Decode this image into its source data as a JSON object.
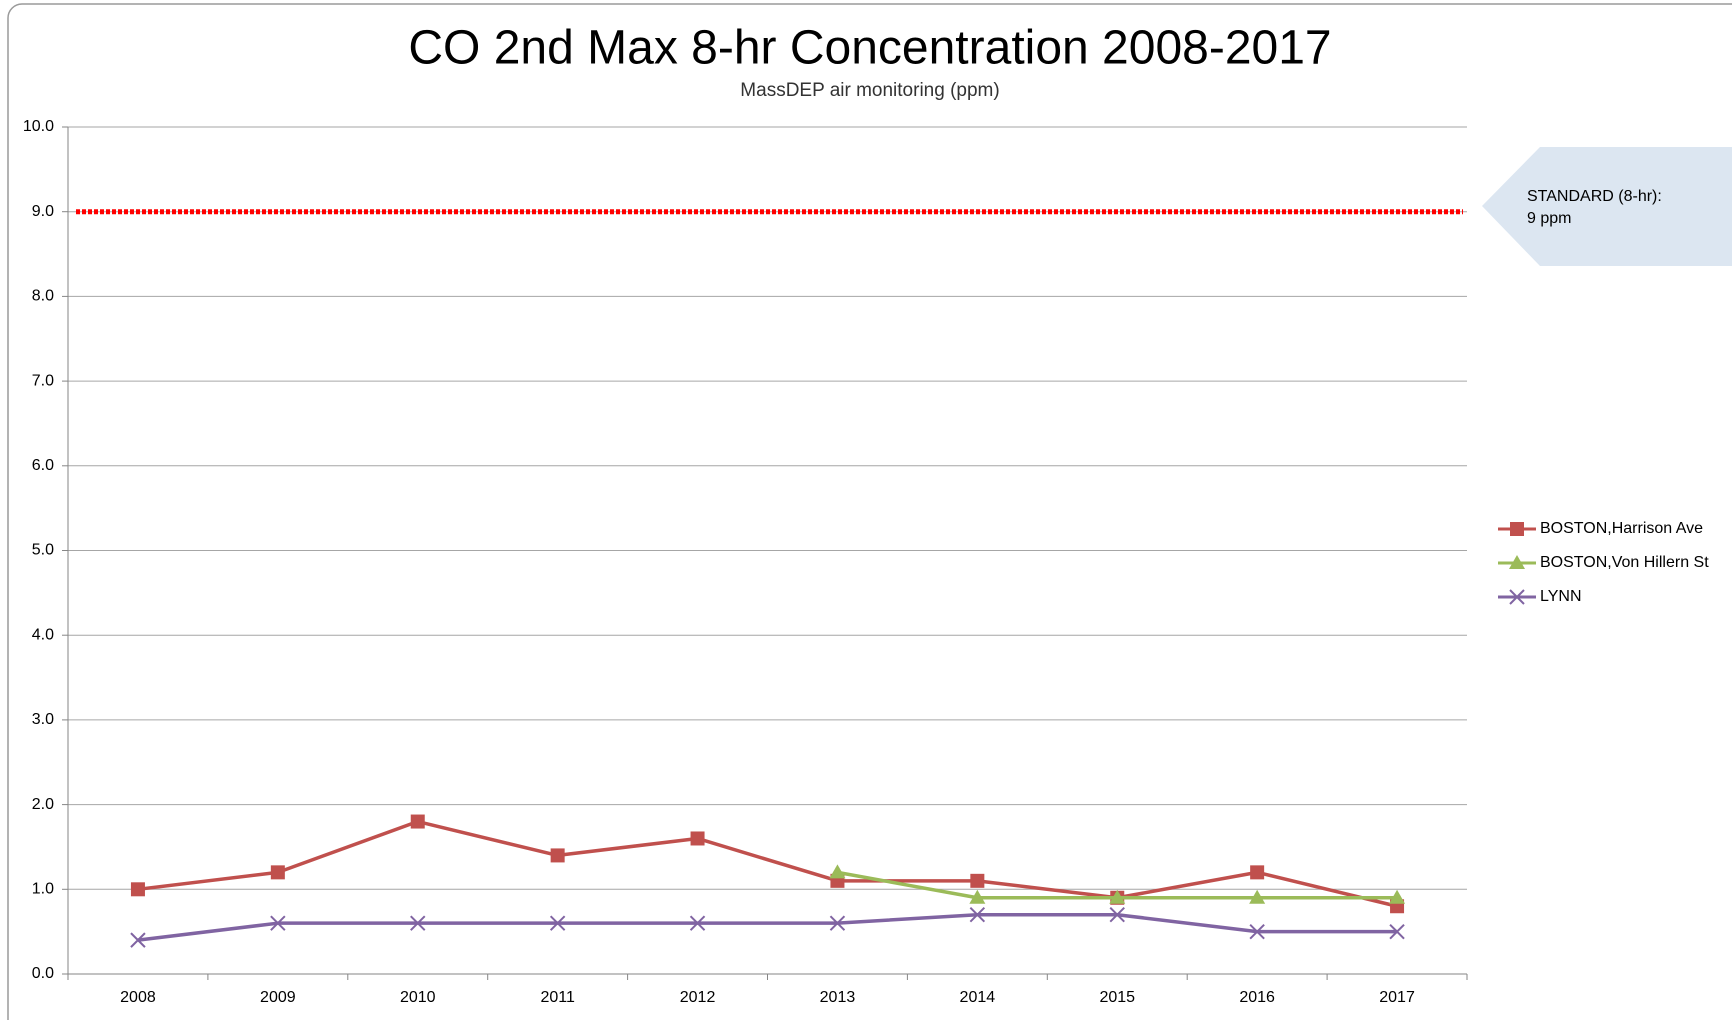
{
  "chart_data": {
    "type": "line",
    "title": "CO 2nd Max 8-hr Concentration 2008-2017",
    "subtitle": "MassDEP air monitoring (ppm)",
    "categories": [
      "2008",
      "2009",
      "2010",
      "2011",
      "2012",
      "2013",
      "2014",
      "2015",
      "2016",
      "2017"
    ],
    "series": [
      {
        "name": "BOSTON,Harrison Ave",
        "color": "#c0504d",
        "marker": "square",
        "values": [
          1.0,
          1.2,
          1.8,
          1.4,
          1.6,
          1.1,
          1.1,
          0.9,
          1.2,
          0.8
        ]
      },
      {
        "name": "BOSTON,Von Hillern St",
        "color": "#9bbb59",
        "marker": "triangle",
        "values": [
          null,
          null,
          null,
          null,
          null,
          1.2,
          0.9,
          0.9,
          0.9,
          0.9
        ]
      },
      {
        "name": "LYNN",
        "color": "#8064a2",
        "marker": "x",
        "values": [
          0.4,
          0.6,
          0.6,
          0.6,
          0.6,
          0.6,
          0.7,
          0.7,
          0.5,
          0.5
        ]
      }
    ],
    "standard": {
      "value": 9,
      "color": "#ff0000",
      "annotation": [
        "STANDARD (8-hr):",
        "9 ppm"
      ]
    },
    "ylim": [
      0,
      10
    ],
    "yticks": [
      {
        "value": 0,
        "label": "0.0"
      },
      {
        "value": 1,
        "label": "1.0"
      },
      {
        "value": 2,
        "label": "2.0"
      },
      {
        "value": 3,
        "label": "3.0"
      },
      {
        "value": 4,
        "label": "4.0"
      },
      {
        "value": 5,
        "label": "5.0"
      },
      {
        "value": 6,
        "label": "6.0"
      },
      {
        "value": 7,
        "label": "7.0"
      },
      {
        "value": 8,
        "label": "8.0"
      },
      {
        "value": 9,
        "label": "9.0"
      },
      {
        "value": 10,
        "label": "10.0"
      }
    ],
    "grid": true,
    "legend": "right"
  }
}
